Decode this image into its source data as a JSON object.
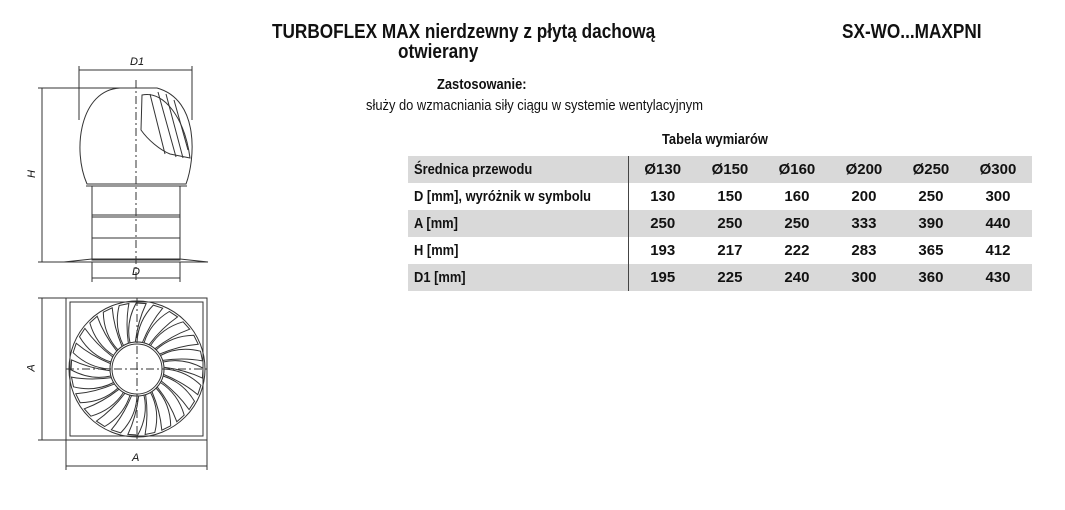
{
  "header": {
    "title_line1": "TURBOFLEX MAX nierdzewny z płytą dachową",
    "title_line2": "otwierany",
    "product_code": "SX-WO...MAXPNI"
  },
  "application": {
    "label": "Zastosowanie:",
    "text": "służy do wzmacniania siły ciągu w systemie wentylacyjnym"
  },
  "table": {
    "title": "Tabela wymiarów",
    "columns": [
      "Średnica przewodu",
      "Ø130",
      "Ø150",
      "Ø160",
      "Ø200",
      "Ø250",
      "Ø300"
    ],
    "rows": [
      [
        "D [mm],  wyróżnik w symbolu",
        "130",
        "150",
        "160",
        "200",
        "250",
        "300"
      ],
      [
        "A [mm]",
        "250",
        "250",
        "250",
        "333",
        "390",
        "440"
      ],
      [
        "H [mm]",
        "193",
        "217",
        "222",
        "283",
        "365",
        "412"
      ],
      [
        "D1 [mm]",
        "195",
        "225",
        "240",
        "300",
        "360",
        "430"
      ]
    ]
  },
  "drawing": {
    "labels": {
      "d1": "D1",
      "h": "H",
      "d": "D",
      "a_vertical": "A",
      "a_horizontal": "A"
    }
  }
}
